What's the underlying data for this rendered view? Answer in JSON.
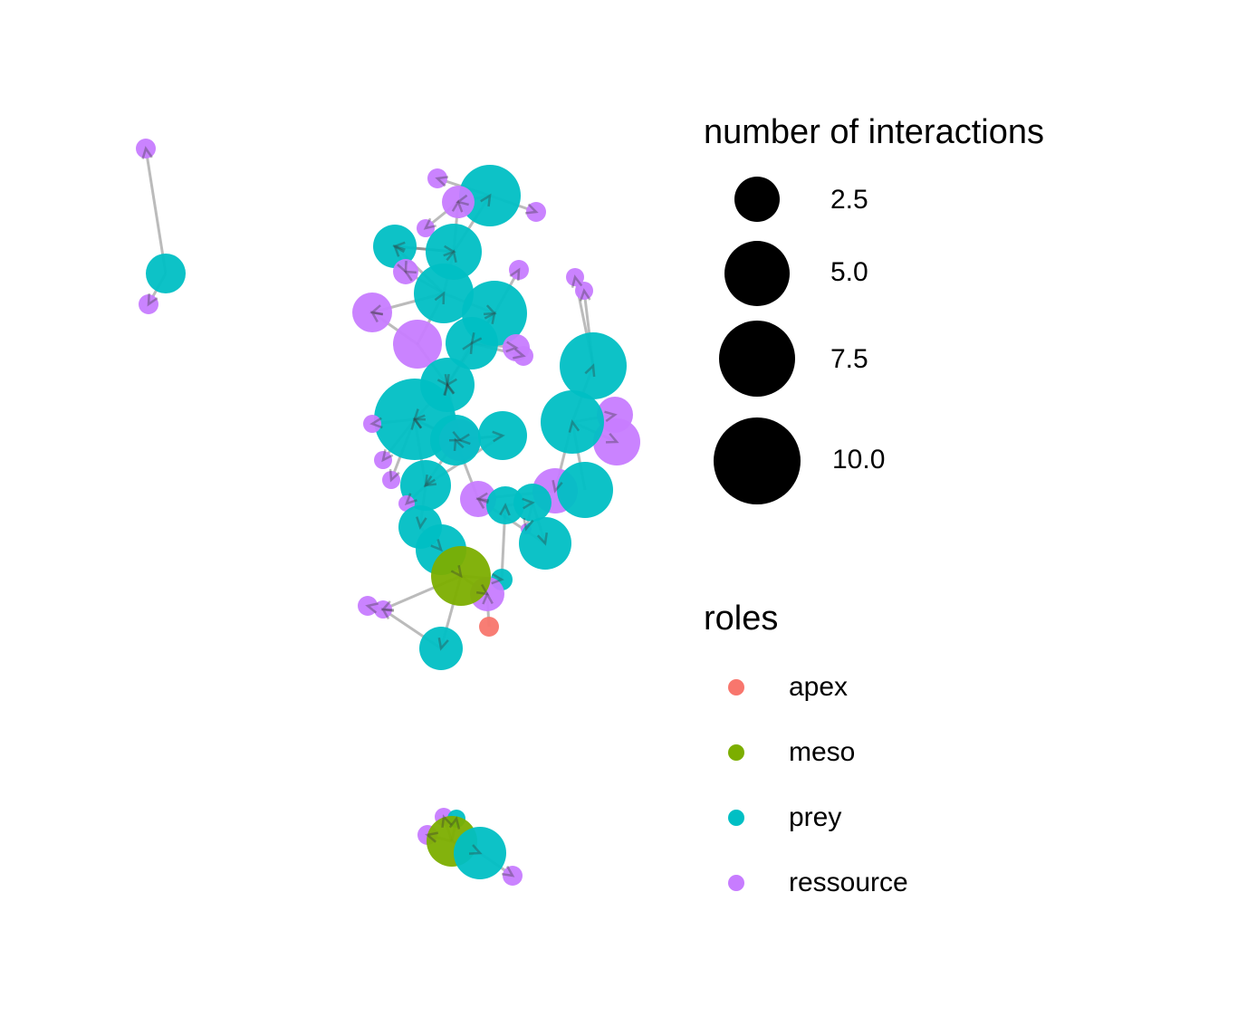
{
  "legend": {
    "size_title": "number of interactions",
    "size_items": [
      {
        "label": "2.5",
        "value": 2.5
      },
      {
        "label": "5.0",
        "value": 5.0
      },
      {
        "label": "7.5",
        "value": 7.5
      },
      {
        "label": "10.0",
        "value": 10.0
      }
    ],
    "roles_title": "roles",
    "role_items": [
      {
        "label": "apex",
        "color": "#F8766D"
      },
      {
        "label": "meso",
        "color": "#7CAE00"
      },
      {
        "label": "prey",
        "color": "#00BFC4"
      },
      {
        "label": "ressource",
        "color": "#C77CFF"
      }
    ]
  },
  "colors": {
    "apex": "#F8766D",
    "meso": "#7CAE00",
    "prey": "#00BFC4",
    "ressource": "#C77CFF",
    "edge": "#555555"
  }
}
